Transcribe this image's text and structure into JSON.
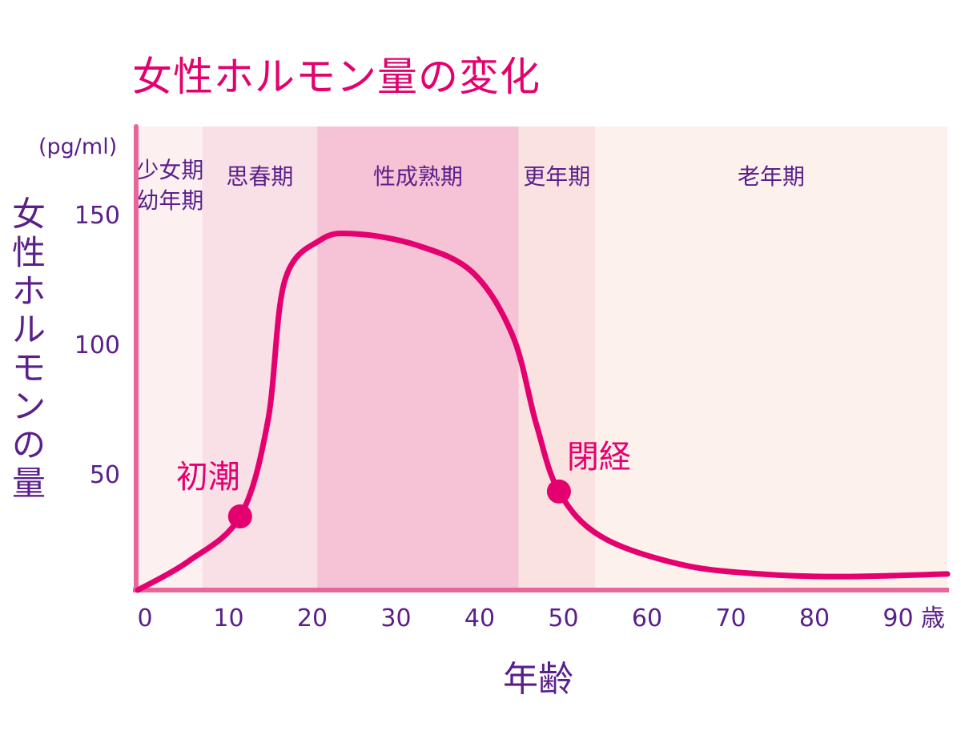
{
  "chart_data": {
    "type": "line",
    "title": "女性ホルモン量の変化",
    "ylabel": "女性ホルモンの量",
    "yunit": "(pg/ml)",
    "xlabel": "年齢",
    "xunit": "歳",
    "xlim": [
      0,
      96.5
    ],
    "ylim": [
      5,
      160
    ],
    "xticks": [
      0,
      10,
      20,
      30,
      40,
      50,
      60,
      70,
      80,
      90
    ],
    "yticks": [
      50,
      100,
      150
    ],
    "grid": false,
    "bands": [
      {
        "labels": [
          "少女期",
          "幼年期"
        ],
        "start": 0,
        "end": 7.7,
        "color": "#fdf0f1"
      },
      {
        "labels": [
          "思春期"
        ],
        "start": 7.7,
        "end": 21.4,
        "color": "#f9dfe6"
      },
      {
        "labels": [
          "性成熟期"
        ],
        "start": 21.4,
        "end": 45.4,
        "color": "#f5c3d5"
      },
      {
        "labels": [
          "更年期"
        ],
        "start": 45.4,
        "end": 54.5,
        "color": "#f9e2e0"
      },
      {
        "labels": [
          "老年期"
        ],
        "start": 54.5,
        "end": 96.5,
        "color": "#fdf1ec"
      }
    ],
    "series": [
      {
        "name": "女性ホルモン量",
        "color": "#e4006e",
        "x": [
          0,
          6,
          12.2,
          15.5,
          17.5,
          21.8,
          26,
          33.2,
          39.9,
          44.7,
          47.5,
          50.2,
          55.2,
          64.7,
          74.2,
          83.8,
          96.5
        ],
        "y": [
          5,
          16,
          33.4,
          70,
          124,
          140,
          142.3,
          138,
          127.5,
          103,
          69,
          43,
          25.7,
          14.9,
          11.2,
          10.2,
          11.2
        ]
      }
    ],
    "annotations": [
      {
        "text": "初潮",
        "x": 12.2,
        "y": 33.4
      },
      {
        "text": "閉経",
        "x": 50.2,
        "y": 43
      }
    ]
  }
}
